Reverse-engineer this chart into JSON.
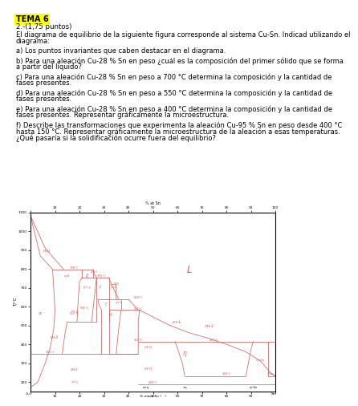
{
  "title": "TEMA 6",
  "title_bg": "#FFFF00",
  "subtitle": "2.-(1,75 puntos)",
  "body_lines": [
    [
      "El diagrama de equilibrio de la siguiente figura corresponde al sistema Cu-Sn. Indicad utilizando el",
      "diagrama:"
    ],
    [
      "a) Los puntos invariantes que caben destacar en el diagrama."
    ],
    [
      "b) Para una aleación Cu-28 % Sn en peso ¿cuál es la composición del primer sólido que se forma",
      "a partir del líquido?"
    ],
    [
      "c) Para una aleación Cu-28 % Sn en peso a 700 °C determina la composición y la cantidad de",
      "fases presentes."
    ],
    [
      "d) Para una aleación Cu-28 % Sn en peso a 550 °C determina la composición y la cantidad de",
      "fases presentes."
    ],
    [
      "e) Para una aleación Cu-28 % Sn en peso a 400 °C determina la composición y la cantidad de",
      "fases presentes. Representar gráficamente la microestructura."
    ],
    [
      "f) Describe las transformaciones que experimenta la aleación Cu-95 % Sn en peso desde 400 °C",
      "hasta 150 °C. Representar gráficamente la microestructura de la aleación a esas temperaturas.",
      "¿Qué pasaría si la solidificación ocurre fuera del equilibrio?"
    ]
  ],
  "line_color": "#d06060",
  "bg_color": "#ffffff"
}
